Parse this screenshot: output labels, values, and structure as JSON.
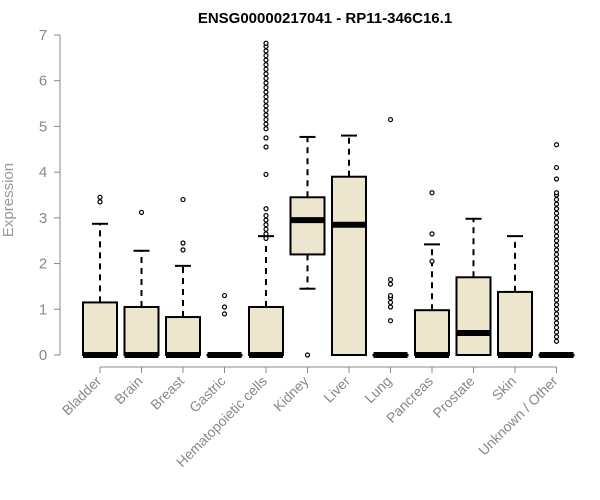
{
  "chart_data": {
    "type": "boxplot",
    "title": "ENSG00000217041 - RP11-346C16.1",
    "xlabel": "",
    "ylabel": "Expression",
    "ylim": [
      0,
      7
    ],
    "yticks": [
      0,
      1,
      2,
      3,
      4,
      5,
      6,
      7
    ],
    "grid": false,
    "colors": {
      "box_fill": "#ede6cf",
      "box_stroke": "#000000",
      "axis": "#888888",
      "label": "#888888"
    },
    "categories": [
      "Bladder",
      "Brain",
      "Breast",
      "Gastric",
      "Hematopoietic cells",
      "Kidney",
      "Liver",
      "Lung",
      "Pancreas",
      "Prostate",
      "Skin",
      "Unknown / Other"
    ],
    "boxes": [
      {
        "category": "Bladder",
        "whisker_low": 0,
        "q1": 0,
        "median": 0,
        "q3": 1.15,
        "whisker_high": 2.87,
        "outliers": [
          3.35,
          3.45
        ]
      },
      {
        "category": "Brain",
        "whisker_low": 0,
        "q1": 0,
        "median": 0,
        "q3": 1.05,
        "whisker_high": 2.28,
        "outliers": [
          3.12
        ]
      },
      {
        "category": "Breast",
        "whisker_low": 0,
        "q1": 0,
        "median": 0,
        "q3": 0.83,
        "whisker_high": 1.95,
        "outliers": [
          2.3,
          2.45,
          3.4
        ]
      },
      {
        "category": "Gastric",
        "whisker_low": 0,
        "q1": 0,
        "median": 0,
        "q3": 0,
        "whisker_high": 0,
        "outliers": [
          0.9,
          1.05,
          1.3
        ]
      },
      {
        "category": "Hematopoietic cells",
        "whisker_low": 0,
        "q1": 0,
        "median": 0,
        "q3": 1.05,
        "whisker_high": 2.6,
        "outliers": [
          2.55,
          2.65,
          2.75,
          2.85,
          2.95,
          3.05,
          3.2,
          3.95,
          4.55,
          4.75,
          4.95,
          5.05,
          5.15,
          5.25,
          5.35,
          5.45,
          5.55,
          5.65,
          5.75,
          5.85,
          5.95,
          6.05,
          6.15,
          6.25,
          6.35,
          6.45,
          6.55,
          6.65,
          6.75,
          6.82
        ]
      },
      {
        "category": "Kidney",
        "whisker_low": 1.45,
        "q1": 2.2,
        "median": 2.95,
        "q3": 3.45,
        "whisker_high": 4.77,
        "outliers": [
          0
        ]
      },
      {
        "category": "Liver",
        "whisker_low": 0,
        "q1": 0,
        "median": 2.85,
        "q3": 3.9,
        "whisker_high": 4.8,
        "outliers": []
      },
      {
        "category": "Lung",
        "whisker_low": 0,
        "q1": 0,
        "median": 0,
        "q3": 0,
        "whisker_high": 0,
        "outliers": [
          0.75,
          1.05,
          1.15,
          1.25,
          1.3,
          1.55,
          1.65,
          5.15
        ]
      },
      {
        "category": "Pancreas",
        "whisker_low": 0,
        "q1": 0,
        "median": 0,
        "q3": 0.98,
        "whisker_high": 2.42,
        "outliers": [
          2.05,
          2.65,
          3.55
        ]
      },
      {
        "category": "Prostate",
        "whisker_low": 0,
        "q1": 0,
        "median": 0.48,
        "q3": 1.7,
        "whisker_high": 2.98,
        "outliers": []
      },
      {
        "category": "Skin",
        "whisker_low": 0,
        "q1": 0,
        "median": 0,
        "q3": 1.38,
        "whisker_high": 2.6,
        "outliers": []
      },
      {
        "category": "Unknown / Other",
        "whisker_low": 0,
        "q1": 0,
        "median": 0,
        "q3": 0,
        "whisker_high": 0,
        "outliers": [
          0.3,
          0.4,
          0.5,
          0.6,
          0.7,
          0.8,
          0.9,
          1.0,
          1.1,
          1.2,
          1.3,
          1.4,
          1.5,
          1.6,
          1.7,
          1.8,
          1.9,
          2.0,
          2.1,
          2.2,
          2.3,
          2.4,
          2.5,
          2.6,
          2.7,
          2.8,
          2.9,
          3.0,
          3.1,
          3.2,
          3.3,
          3.4,
          3.5,
          3.55,
          3.85,
          4.1,
          4.6
        ]
      }
    ]
  }
}
